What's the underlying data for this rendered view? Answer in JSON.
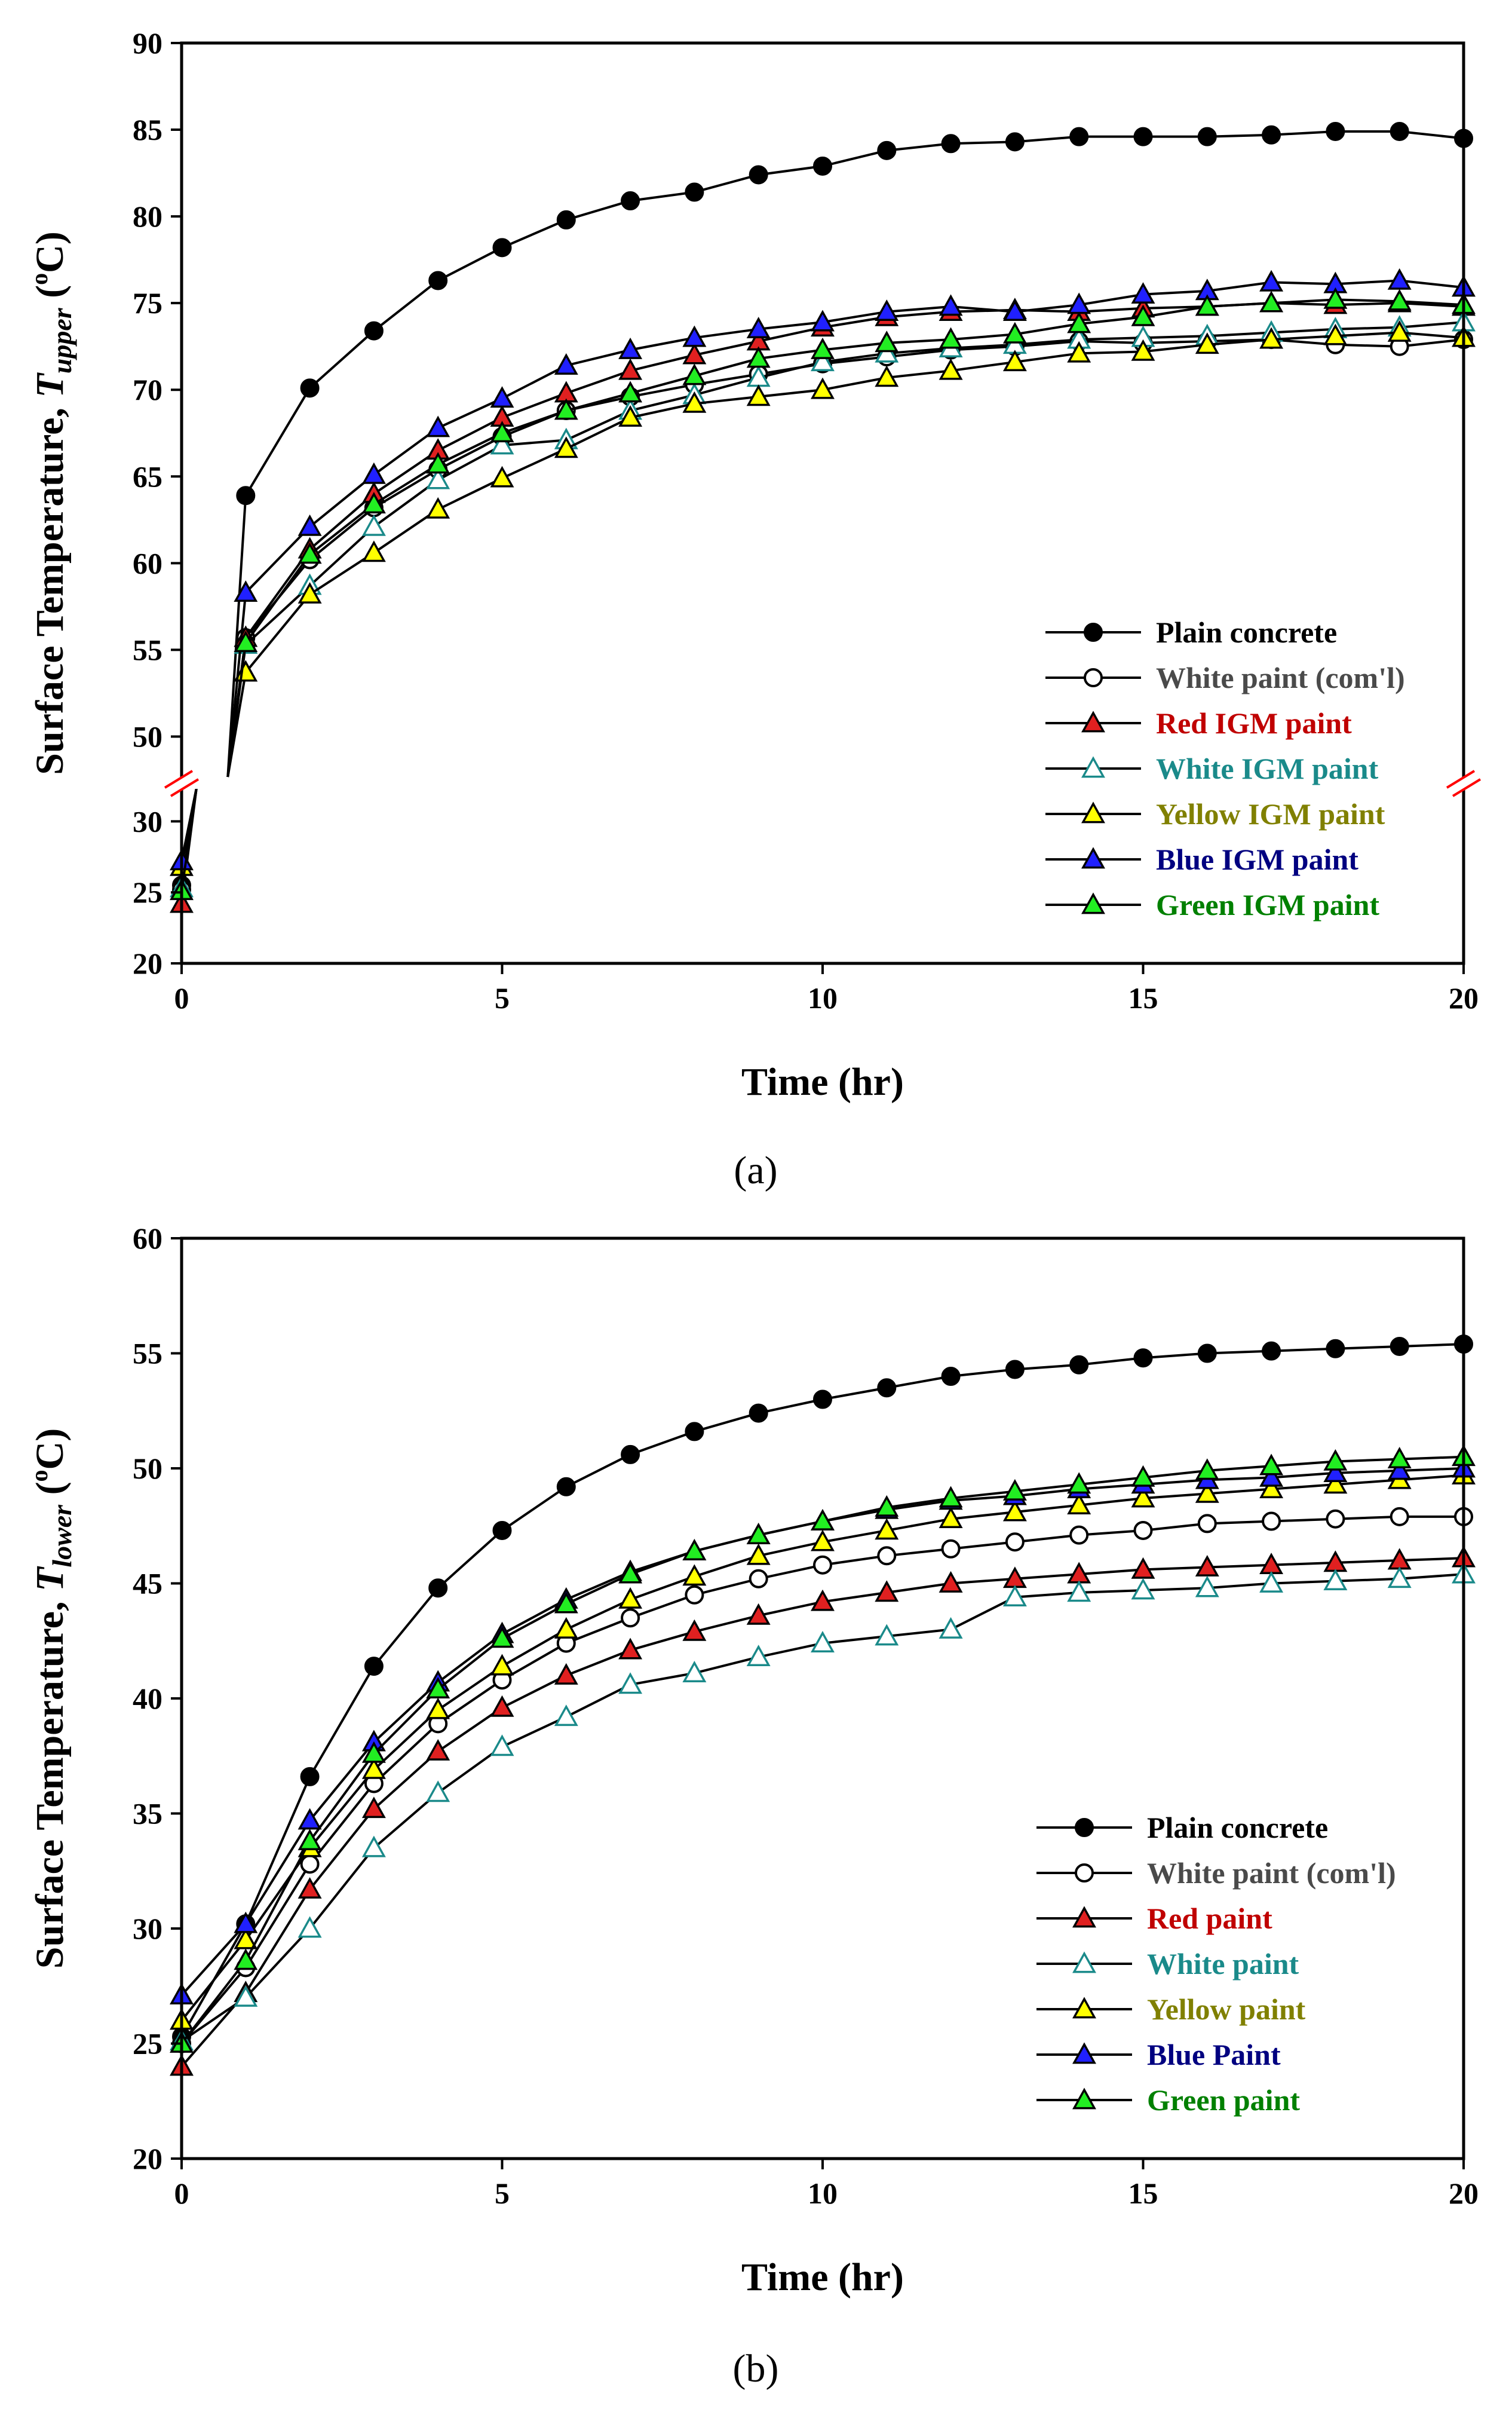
{
  "colors": {
    "black": "#000000",
    "white_com": "#4a4a4a",
    "red": "#c00000",
    "teal": "#1a8a8a",
    "olive": "#808000",
    "navy": "#000080",
    "green": "#008000",
    "red_fill": "#e02020",
    "teal_fill": "#ffffff",
    "yellow_fill": "#ffff00",
    "blue_fill": "#2020ff",
    "green_fill": "#22ee22",
    "break_mark": "#ff0000"
  },
  "chart_data": [
    {
      "panel_label": "(a)",
      "type": "line",
      "title": "",
      "xlabel": "Time (hr)",
      "ylabel_main": "Surface Temperature, ",
      "ylabel_var": "T",
      "ylabel_sub": "upper",
      "ylabel_unit_open": " (",
      "ylabel_unit_sup": "o",
      "ylabel_unit_close": "C)",
      "xlim": [
        0,
        20
      ],
      "x_ticks": [
        "0",
        "5",
        "10",
        "15",
        "20"
      ],
      "y_ticks_lower": [
        "20",
        "25",
        "30"
      ],
      "y_ticks_upper": [
        "50",
        "55",
        "60",
        "65",
        "70",
        "75",
        "80",
        "85",
        "90"
      ],
      "y_break": {
        "lower_range": [
          20,
          32.5
        ],
        "upper_range": [
          47.5,
          90
        ]
      },
      "x": [
        0,
        1,
        2,
        3,
        4,
        5,
        6,
        7,
        8,
        9,
        10,
        11,
        12,
        13,
        14,
        15,
        16,
        17,
        18,
        19,
        20
      ],
      "series": [
        {
          "name": "Plain concrete",
          "marker": "circle-filled",
          "values": [
            25.5,
            63.9,
            70.1,
            73.4,
            76.3,
            78.2,
            79.8,
            80.9,
            81.4,
            82.4,
            82.9,
            83.8,
            84.2,
            84.3,
            84.6,
            84.6,
            84.6,
            84.7,
            84.9,
            84.9,
            84.5
          ]
        },
        {
          "name": "White paint (com'l)",
          "marker": "circle-open",
          "values": [
            25.2,
            55.7,
            60.2,
            63.2,
            65.4,
            67.3,
            68.8,
            69.6,
            70.3,
            70.9,
            71.5,
            71.9,
            72.3,
            72.5,
            72.8,
            72.7,
            72.8,
            72.9,
            72.6,
            72.5,
            72.9
          ]
        },
        {
          "name": "Red IGM paint",
          "marker": "triangle-filled",
          "values": [
            24.2,
            55.7,
            60.8,
            64.0,
            66.5,
            68.4,
            69.8,
            71.1,
            72.0,
            72.8,
            73.6,
            74.2,
            74.5,
            74.6,
            74.5,
            74.7,
            74.8,
            75.0,
            74.9,
            75.0,
            74.8
          ]
        },
        {
          "name": "White IGM paint",
          "marker": "triangle-open",
          "values": [
            25.3,
            55.3,
            58.7,
            62.1,
            64.8,
            66.8,
            67.1,
            68.8,
            69.7,
            70.7,
            71.6,
            72.1,
            72.4,
            72.6,
            72.9,
            73.0,
            73.1,
            73.3,
            73.5,
            73.6,
            73.9
          ]
        },
        {
          "name": "Yellow IGM paint",
          "marker": "triangle-filled",
          "values": [
            26.8,
            53.7,
            58.2,
            60.6,
            63.1,
            64.9,
            66.6,
            68.4,
            69.2,
            69.6,
            70.0,
            70.7,
            71.1,
            71.6,
            72.1,
            72.2,
            72.6,
            72.9,
            73.1,
            73.3,
            73.0
          ]
        },
        {
          "name": "Blue IGM paint",
          "marker": "triangle-filled",
          "values": [
            27.2,
            58.3,
            62.1,
            65.1,
            67.8,
            69.5,
            71.4,
            72.3,
            73.0,
            73.5,
            73.9,
            74.5,
            74.8,
            74.5,
            74.9,
            75.5,
            75.7,
            76.2,
            76.1,
            76.3,
            75.9
          ]
        },
        {
          "name": "Green IGM paint",
          "marker": "triangle-filled",
          "values": [
            25.1,
            55.4,
            60.5,
            63.4,
            65.7,
            67.5,
            68.8,
            69.8,
            70.8,
            71.8,
            72.3,
            72.7,
            72.9,
            73.2,
            73.8,
            74.2,
            74.8,
            75.0,
            75.2,
            75.1,
            74.9
          ]
        }
      ],
      "legend": [
        "Plain concrete",
        "White paint (com'l)",
        "Red IGM paint",
        "White IGM paint",
        "Yellow IGM paint",
        "Blue IGM paint",
        "Green IGM paint"
      ],
      "legend_position": "lower-right"
    },
    {
      "panel_label": "(b)",
      "type": "line",
      "title": "",
      "xlabel": "Time (hr)",
      "ylabel_main": "Surface Temperature, ",
      "ylabel_var": "T",
      "ylabel_sub": "lower",
      "ylabel_unit_open": " (",
      "ylabel_unit_sup": "o",
      "ylabel_unit_close": "C)",
      "xlim": [
        0,
        20
      ],
      "ylim": [
        20,
        60
      ],
      "x_ticks": [
        "0",
        "5",
        "10",
        "15",
        "20"
      ],
      "y_ticks": [
        "20",
        "25",
        "30",
        "35",
        "40",
        "45",
        "50",
        "55",
        "60"
      ],
      "x": [
        0,
        1,
        2,
        3,
        4,
        5,
        6,
        7,
        8,
        9,
        10,
        11,
        12,
        13,
        14,
        15,
        16,
        17,
        18,
        19,
        20
      ],
      "series": [
        {
          "name": "Plain concrete",
          "marker": "circle-filled",
          "values": [
            25.3,
            30.2,
            36.6,
            41.4,
            44.8,
            47.3,
            49.2,
            50.6,
            51.6,
            52.4,
            53.0,
            53.5,
            54.0,
            54.3,
            54.5,
            54.8,
            55.0,
            55.1,
            55.2,
            55.3,
            55.4
          ]
        },
        {
          "name": "White paint (com'l)",
          "marker": "circle-open",
          "values": [
            25.0,
            28.3,
            32.8,
            36.3,
            38.9,
            40.8,
            42.4,
            43.5,
            44.5,
            45.2,
            45.8,
            46.2,
            46.5,
            46.8,
            47.1,
            47.3,
            47.6,
            47.7,
            47.8,
            47.9,
            47.9
          ]
        },
        {
          "name": "Red paint",
          "marker": "triangle-filled",
          "values": [
            24.0,
            27.2,
            31.7,
            35.2,
            37.7,
            39.6,
            41.0,
            42.1,
            42.9,
            43.6,
            44.2,
            44.6,
            45.0,
            45.2,
            45.4,
            45.6,
            45.7,
            45.8,
            45.9,
            46.0,
            46.1
          ]
        },
        {
          "name": "White paint",
          "marker": "triangle-open",
          "values": [
            25.1,
            27.0,
            30.0,
            33.5,
            35.9,
            37.9,
            39.2,
            40.6,
            41.1,
            41.8,
            42.4,
            42.7,
            43.0,
            44.4,
            44.6,
            44.7,
            44.8,
            45.0,
            45.1,
            45.2,
            45.4
          ]
        },
        {
          "name": "Yellow paint",
          "marker": "triangle-filled",
          "values": [
            26.0,
            29.5,
            33.5,
            36.9,
            39.5,
            41.4,
            43.0,
            44.3,
            45.3,
            46.2,
            46.8,
            47.3,
            47.8,
            48.1,
            48.4,
            48.7,
            48.9,
            49.1,
            49.3,
            49.5,
            49.7
          ]
        },
        {
          "name": "Blue Paint",
          "marker": "triangle-filled",
          "values": [
            27.1,
            30.2,
            34.7,
            38.1,
            40.7,
            42.8,
            44.3,
            45.5,
            46.4,
            47.1,
            47.7,
            48.2,
            48.6,
            48.8,
            49.1,
            49.3,
            49.5,
            49.6,
            49.8,
            49.9,
            50.0
          ]
        },
        {
          "name": "Green paint",
          "marker": "triangle-filled",
          "values": [
            25.0,
            28.6,
            33.8,
            37.6,
            40.4,
            42.6,
            44.1,
            45.4,
            46.4,
            47.1,
            47.7,
            48.3,
            48.7,
            49.0,
            49.3,
            49.6,
            49.9,
            50.1,
            50.3,
            50.4,
            50.5
          ]
        }
      ],
      "legend": [
        "Plain concrete",
        "White paint (com'l)",
        "Red paint",
        "White paint",
        "Yellow paint",
        "Blue Paint",
        "Green paint"
      ],
      "legend_position": "lower-right"
    }
  ]
}
